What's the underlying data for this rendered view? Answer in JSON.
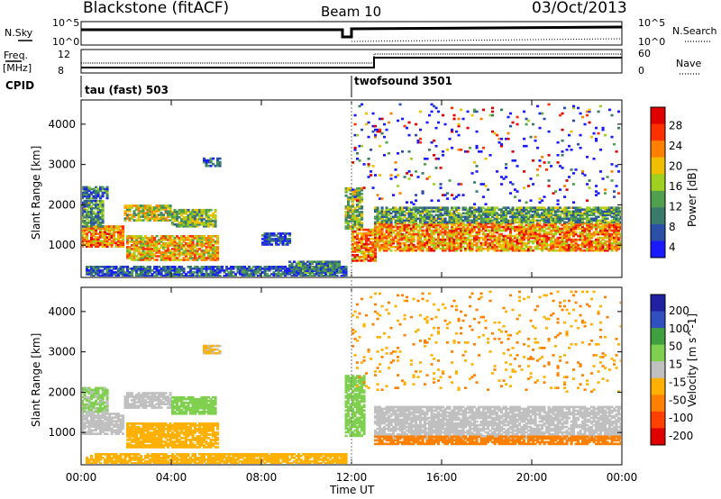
{
  "header": {
    "station": "Blackstone (fitACF)",
    "beam": "Beam 10",
    "date": "03/Oct/2013"
  },
  "top_panels": {
    "nsky_label": "N.Sky",
    "nsearch_label": "N.Search",
    "noise_ticks_left": [
      "10^5",
      "10^0"
    ],
    "noise_ticks_right": [
      "10^5",
      "10^0"
    ],
    "freq_label": "Freq.",
    "freq_unit": "[MHz]",
    "freq_ticks": [
      "12",
      "8"
    ],
    "nave_label": "Nave",
    "nave_ticks": [
      "60",
      "0"
    ],
    "cpid_label": "CPID",
    "cpid_segments": [
      "tau (fast) 503",
      "twofsound 3501"
    ]
  },
  "chart_data": [
    {
      "type": "heatmap",
      "title": "",
      "xlabel": "",
      "ylabel": "Slant Range [km]",
      "x_ticks": [
        "00:00",
        "04:00",
        "08:00",
        "12:00",
        "16:00",
        "20:00",
        "00:00"
      ],
      "x_hours": [
        0,
        4,
        8,
        12,
        16,
        20,
        24
      ],
      "y_ticks": [
        1000,
        2000,
        3000,
        4000
      ],
      "ylim": [
        200,
        4600
      ],
      "colorbar": {
        "label": "Power [dB]",
        "ticks": [
          "28",
          "24",
          "20",
          "16",
          "12",
          "8",
          "4"
        ],
        "range": [
          0,
          30
        ]
      },
      "echo_bands": [
        {
          "t0": 0.0,
          "t1": 1.9,
          "r0": 950,
          "r1": 1450,
          "level": 22
        },
        {
          "t0": 0.0,
          "t1": 0.9,
          "r0": 1450,
          "r1": 2100,
          "level": 10
        },
        {
          "t0": 0.0,
          "t1": 1.1,
          "r0": 2150,
          "r1": 2450,
          "level": 7
        },
        {
          "t0": 1.9,
          "t1": 4.0,
          "r0": 1600,
          "r1": 2000,
          "level": 16
        },
        {
          "t0": 4.0,
          "t1": 5.9,
          "r0": 1450,
          "r1": 1900,
          "level": 13
        },
        {
          "t0": 2.0,
          "t1": 6.0,
          "r0": 620,
          "r1": 1250,
          "level": 19
        },
        {
          "t0": 5.4,
          "t1": 6.1,
          "r0": 2950,
          "r1": 3150,
          "level": 6
        },
        {
          "t0": 0.2,
          "t1": 11.7,
          "r0": 220,
          "r1": 450,
          "level": 6
        },
        {
          "t0": 9.2,
          "t1": 11.4,
          "r0": 300,
          "r1": 600,
          "level": 9
        },
        {
          "t0": 8.0,
          "t1": 9.2,
          "r0": 1000,
          "r1": 1300,
          "level": 5
        },
        {
          "t0": 11.7,
          "t1": 12.4,
          "r0": 1400,
          "r1": 2400,
          "level": 14
        },
        {
          "t0": 12.0,
          "t1": 13.0,
          "r0": 600,
          "r1": 1400,
          "level": 22
        },
        {
          "t0": 13.0,
          "t1": 24.0,
          "r0": 850,
          "r1": 1550,
          "level": 21
        },
        {
          "t0": 13.0,
          "t1": 24.0,
          "r0": 1550,
          "r1": 1950,
          "level": 11
        },
        {
          "t0": 12.0,
          "t1": 24.0,
          "r0": 2000,
          "r1": 4500,
          "level": 5,
          "sparse": true
        }
      ]
    },
    {
      "type": "heatmap",
      "title": "",
      "xlabel": "Time UT",
      "ylabel": "Slant Range [km]",
      "x_ticks": [
        "00:00",
        "04:00",
        "08:00",
        "12:00",
        "16:00",
        "20:00",
        "00:00"
      ],
      "x_hours": [
        0,
        4,
        8,
        12,
        16,
        20,
        24
      ],
      "y_ticks": [
        1000,
        2000,
        3000,
        4000
      ],
      "ylim": [
        200,
        4600
      ],
      "colorbar": {
        "label": "Velocity [m s^-1]",
        "ticks": [
          "200",
          "100",
          "50",
          "15",
          "-15",
          "-50",
          "-100",
          "-200"
        ],
        "range": [
          -250,
          250
        ]
      },
      "echo_bands": [
        {
          "t0": 0.0,
          "t1": 1.9,
          "r0": 950,
          "r1": 1450,
          "level": 0
        },
        {
          "t0": 0.0,
          "t1": 1.2,
          "r0": 1500,
          "r1": 2100,
          "level": 30
        },
        {
          "t0": 1.9,
          "t1": 4.0,
          "r0": 1600,
          "r1": 2000,
          "level": 0
        },
        {
          "t0": 4.0,
          "t1": 5.9,
          "r0": 1450,
          "r1": 1900,
          "level": 60
        },
        {
          "t0": 2.0,
          "t1": 6.0,
          "r0": 620,
          "r1": 1250,
          "level": -40
        },
        {
          "t0": 5.4,
          "t1": 6.1,
          "r0": 2950,
          "r1": 3150,
          "level": -30
        },
        {
          "t0": 0.2,
          "t1": 11.7,
          "r0": 220,
          "r1": 450,
          "level": -40
        },
        {
          "t0": 11.7,
          "t1": 12.5,
          "r0": 900,
          "r1": 2400,
          "level": 60
        },
        {
          "t0": 13.0,
          "t1": 24.0,
          "r0": 850,
          "r1": 1650,
          "level": 0
        },
        {
          "t0": 13.0,
          "t1": 24.0,
          "r0": 700,
          "r1": 900,
          "level": -120
        },
        {
          "t0": 12.0,
          "t1": 24.0,
          "r0": 2000,
          "r1": 4500,
          "level": -80,
          "sparse": true
        }
      ]
    }
  ],
  "colors": {
    "power_scale": [
      "#1a1aff",
      "#2a50a8",
      "#3a7a6a",
      "#50a050",
      "#a0d020",
      "#f0c000",
      "#ff8000",
      "#ff3000",
      "#e00000"
    ],
    "velocity_scale": [
      "#e00000",
      "#ff4000",
      "#ff8000",
      "#ffb000",
      "#c0c0c0",
      "#80d050",
      "#40a040",
      "#3050c0",
      "#2020a0"
    ]
  }
}
